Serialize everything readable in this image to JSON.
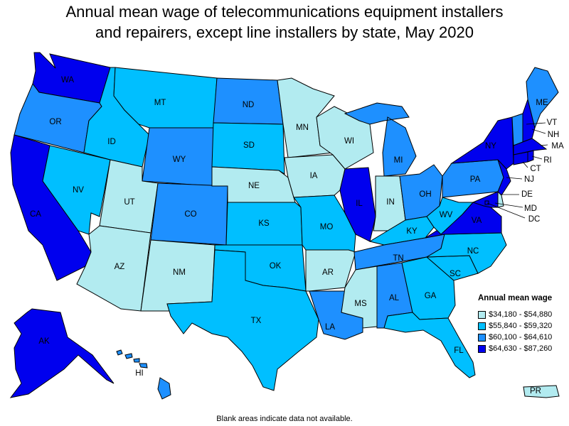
{
  "title_line1": "Annual mean wage of telecommunications equipment installers",
  "title_line2": "and repairers, except line installers by state, May 2020",
  "legend": {
    "title": "Annual mean wage",
    "items": [
      {
        "label": "$34,180 - $54,880",
        "color": "#b2ebf0"
      },
      {
        "label": "$55,840 - $59,320",
        "color": "#00bfff"
      },
      {
        "label": "$60,100 - $64,610",
        "color": "#1e90ff"
      },
      {
        "label": "$64,630 - $87,260",
        "color": "#0000ee"
      }
    ]
  },
  "footnote": "Blank areas indicate data not available.",
  "states": [
    {
      "abbr": "WA",
      "tier": 3
    },
    {
      "abbr": "OR",
      "tier": 2
    },
    {
      "abbr": "CA",
      "tier": 3
    },
    {
      "abbr": "ID",
      "tier": 1
    },
    {
      "abbr": "NV",
      "tier": 1
    },
    {
      "abbr": "MT",
      "tier": 1
    },
    {
      "abbr": "WY",
      "tier": 2
    },
    {
      "abbr": "UT",
      "tier": 0
    },
    {
      "abbr": "AZ",
      "tier": 0
    },
    {
      "abbr": "CO",
      "tier": 2
    },
    {
      "abbr": "NM",
      "tier": 0
    },
    {
      "abbr": "ND",
      "tier": 2
    },
    {
      "abbr": "SD",
      "tier": 1
    },
    {
      "abbr": "NE",
      "tier": 0
    },
    {
      "abbr": "KS",
      "tier": 1
    },
    {
      "abbr": "OK",
      "tier": 1
    },
    {
      "abbr": "TX",
      "tier": 1
    },
    {
      "abbr": "MN",
      "tier": 0
    },
    {
      "abbr": "IA",
      "tier": 0
    },
    {
      "abbr": "MO",
      "tier": 1
    },
    {
      "abbr": "AR",
      "tier": 0
    },
    {
      "abbr": "LA",
      "tier": 2
    },
    {
      "abbr": "WI",
      "tier": 0
    },
    {
      "abbr": "IL",
      "tier": 3
    },
    {
      "abbr": "MI",
      "tier": 2
    },
    {
      "abbr": "IN",
      "tier": 0
    },
    {
      "abbr": "OH",
      "tier": 2
    },
    {
      "abbr": "KY",
      "tier": 1
    },
    {
      "abbr": "TN",
      "tier": 2
    },
    {
      "abbr": "MS",
      "tier": 0
    },
    {
      "abbr": "AL",
      "tier": 2
    },
    {
      "abbr": "GA",
      "tier": 1
    },
    {
      "abbr": "FL",
      "tier": 1
    },
    {
      "abbr": "SC",
      "tier": 1
    },
    {
      "abbr": "NC",
      "tier": 1
    },
    {
      "abbr": "VA",
      "tier": 3
    },
    {
      "abbr": "WV",
      "tier": 1
    },
    {
      "abbr": "PA",
      "tier": 2
    },
    {
      "abbr": "NY",
      "tier": 3
    },
    {
      "abbr": "ME",
      "tier": 2
    },
    {
      "abbr": "VT",
      "tier": 2
    },
    {
      "abbr": "NH",
      "tier": 3
    },
    {
      "abbr": "MA",
      "tier": 3
    },
    {
      "abbr": "RI",
      "tier": 3
    },
    {
      "abbr": "CT",
      "tier": 3
    },
    {
      "abbr": "NJ",
      "tier": 3
    },
    {
      "abbr": "DE",
      "tier": 0
    },
    {
      "abbr": "MD",
      "tier": 3
    },
    {
      "abbr": "DC",
      "tier": 3
    },
    {
      "abbr": "AK",
      "tier": 3
    },
    {
      "abbr": "HI",
      "tier": 2
    },
    {
      "abbr": "PR",
      "tier": 0
    }
  ]
}
